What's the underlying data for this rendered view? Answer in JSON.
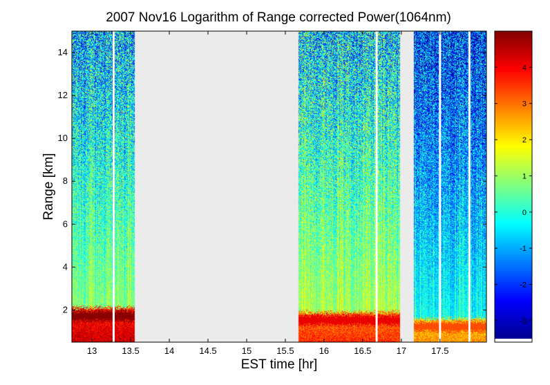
{
  "chart_data": {
    "type": "heatmap",
    "title": "2007 Nov16  Logarithm of Range corrected Power(1064nm)",
    "xlabel": "EST time [hr]",
    "ylabel": "Range [km]",
    "xlim": [
      12.74,
      18.1
    ],
    "ylim": [
      0.5,
      15.0
    ],
    "x_ticks": [
      13,
      13.5,
      14,
      14.5,
      15,
      15.5,
      16,
      16.5,
      17,
      17.5
    ],
    "x_tick_labels": [
      "13",
      "13.5",
      "14",
      "14.5",
      "15",
      "15.5",
      "16",
      "16.5",
      "17",
      "17.5"
    ],
    "y_ticks": [
      2,
      4,
      6,
      8,
      10,
      12,
      14
    ],
    "y_tick_labels": [
      "2",
      "4",
      "6",
      "8",
      "10",
      "12",
      "14"
    ],
    "colorbar": {
      "clim": [
        -3.5,
        5.0
      ],
      "ticks": [
        -3,
        -2,
        -1,
        0,
        1,
        2,
        3,
        4
      ],
      "tick_labels": [
        "-3",
        "-2",
        "-1",
        "0",
        "1",
        "2",
        "3",
        "4"
      ],
      "colormap": "jet"
    },
    "no_data_color": "#ebebeb",
    "no_data_intervals": [
      [
        13.55,
        15.67
      ],
      [
        16.98,
        17.16
      ]
    ],
    "gap_lines_hr": [
      13.28,
      16.68,
      17.5,
      17.88
    ],
    "data_segments": [
      {
        "start": 12.74,
        "end": 13.55,
        "boundary_layer_top_km": 2.1,
        "near_surface_value": 4.6,
        "free_trop_value": -0.2
      },
      {
        "start": 15.67,
        "end": 16.98,
        "boundary_layer_top_km": 1.9,
        "near_surface_value": 3.8,
        "free_trop_value": 0.2
      },
      {
        "start": 17.16,
        "end": 18.1,
        "boundary_layer_top_km": 1.6,
        "near_surface_value": 3.0,
        "free_trop_value": -1.2
      }
    ]
  }
}
